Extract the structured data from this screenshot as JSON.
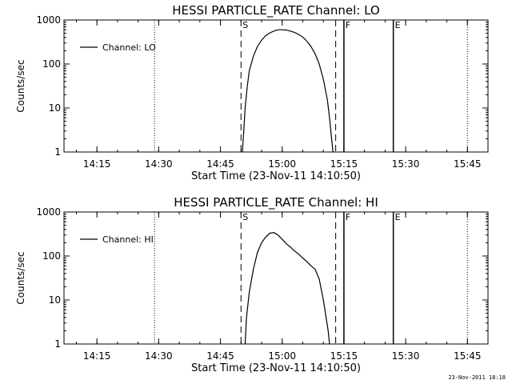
{
  "chart_data": [
    {
      "type": "line",
      "title": "HESSI PARTICLE_RATE Channel: LO",
      "xlabel": "Start Time (23-Nov-11 14:10:50)",
      "ylabel": "Counts/sec",
      "yscale": "log",
      "ylim": [
        1,
        1000
      ],
      "xlim": [
        "14:07",
        "15:50"
      ],
      "xticks": [
        "14:15",
        "14:30",
        "14:45",
        "15:00",
        "15:15",
        "15:30",
        "15:45"
      ],
      "yticks": [
        "1",
        "10",
        "100",
        "1000"
      ],
      "legend": {
        "placement": "top-left",
        "entries": [
          "Channel: LO"
        ]
      },
      "markers": [
        {
          "time": "14:29",
          "label": "",
          "style": "dotted"
        },
        {
          "time": "14:50",
          "label": "S",
          "style": "dashed"
        },
        {
          "time": "15:13",
          "label": "",
          "style": "dashed"
        },
        {
          "time": "15:15",
          "label": "F",
          "style": "solid"
        },
        {
          "time": "15:27",
          "label": "E",
          "style": "solid"
        },
        {
          "time": "15:45",
          "label": "",
          "style": "dotted"
        }
      ],
      "series": [
        {
          "name": "Channel: LO",
          "x": [
            "14:50:20",
            "14:50:40",
            "14:51:00",
            "14:51:30",
            "14:52:00",
            "14:53:00",
            "14:54:00",
            "14:55:00",
            "14:56:00",
            "14:57:00",
            "14:58:00",
            "14:59:00",
            "15:00:00",
            "15:01:00",
            "15:02:00",
            "15:03:00",
            "15:04:00",
            "15:05:00",
            "15:06:00",
            "15:07:00",
            "15:08:00",
            "15:09:00",
            "15:10:00",
            "15:11:00",
            "15:11:30",
            "15:12:00",
            "15:12:20"
          ],
          "y": [
            1,
            3,
            10,
            30,
            70,
            150,
            250,
            350,
            440,
            510,
            560,
            600,
            600,
            590,
            560,
            520,
            470,
            410,
            330,
            250,
            170,
            100,
            45,
            15,
            6,
            2,
            1
          ]
        }
      ]
    },
    {
      "type": "line",
      "title": "HESSI PARTICLE_RATE Channel: HI",
      "xlabel": "Start Time (23-Nov-11 14:10:50)",
      "ylabel": "Counts/sec",
      "yscale": "log",
      "ylim": [
        1,
        1000
      ],
      "xlim": [
        "14:07",
        "15:50"
      ],
      "xticks": [
        "14:15",
        "14:30",
        "14:45",
        "15:00",
        "15:15",
        "15:30",
        "15:45"
      ],
      "yticks": [
        "1",
        "10",
        "100",
        "1000"
      ],
      "legend": {
        "placement": "top-left",
        "entries": [
          "Channel: HI"
        ]
      },
      "markers": [
        {
          "time": "14:29",
          "label": "",
          "style": "dotted"
        },
        {
          "time": "14:50",
          "label": "S",
          "style": "dashed"
        },
        {
          "time": "15:13",
          "label": "",
          "style": "dashed"
        },
        {
          "time": "15:15",
          "label": "F",
          "style": "solid"
        },
        {
          "time": "15:27",
          "label": "E",
          "style": "solid"
        },
        {
          "time": "15:45",
          "label": "",
          "style": "dotted"
        }
      ],
      "series": [
        {
          "name": "Channel: HI",
          "x": [
            "14:51:00",
            "14:51:20",
            "14:52:00",
            "14:53:00",
            "14:54:00",
            "14:55:00",
            "14:56:00",
            "14:57:00",
            "14:58:00",
            "14:59:00",
            "15:00:00",
            "15:01:00",
            "15:02:00",
            "15:03:00",
            "15:04:00",
            "15:05:00",
            "15:06:00",
            "15:07:00",
            "15:08:00",
            "15:09:00",
            "15:10:00",
            "15:10:40",
            "15:11:10",
            "15:11:30"
          ],
          "y": [
            1,
            4,
            15,
            50,
            120,
            200,
            270,
            330,
            340,
            300,
            240,
            190,
            160,
            130,
            110,
            90,
            75,
            60,
            50,
            30,
            10,
            4,
            2,
            1
          ]
        }
      ]
    }
  ],
  "footer": {
    "timestamp": "23-Nov-2011 18:18"
  }
}
